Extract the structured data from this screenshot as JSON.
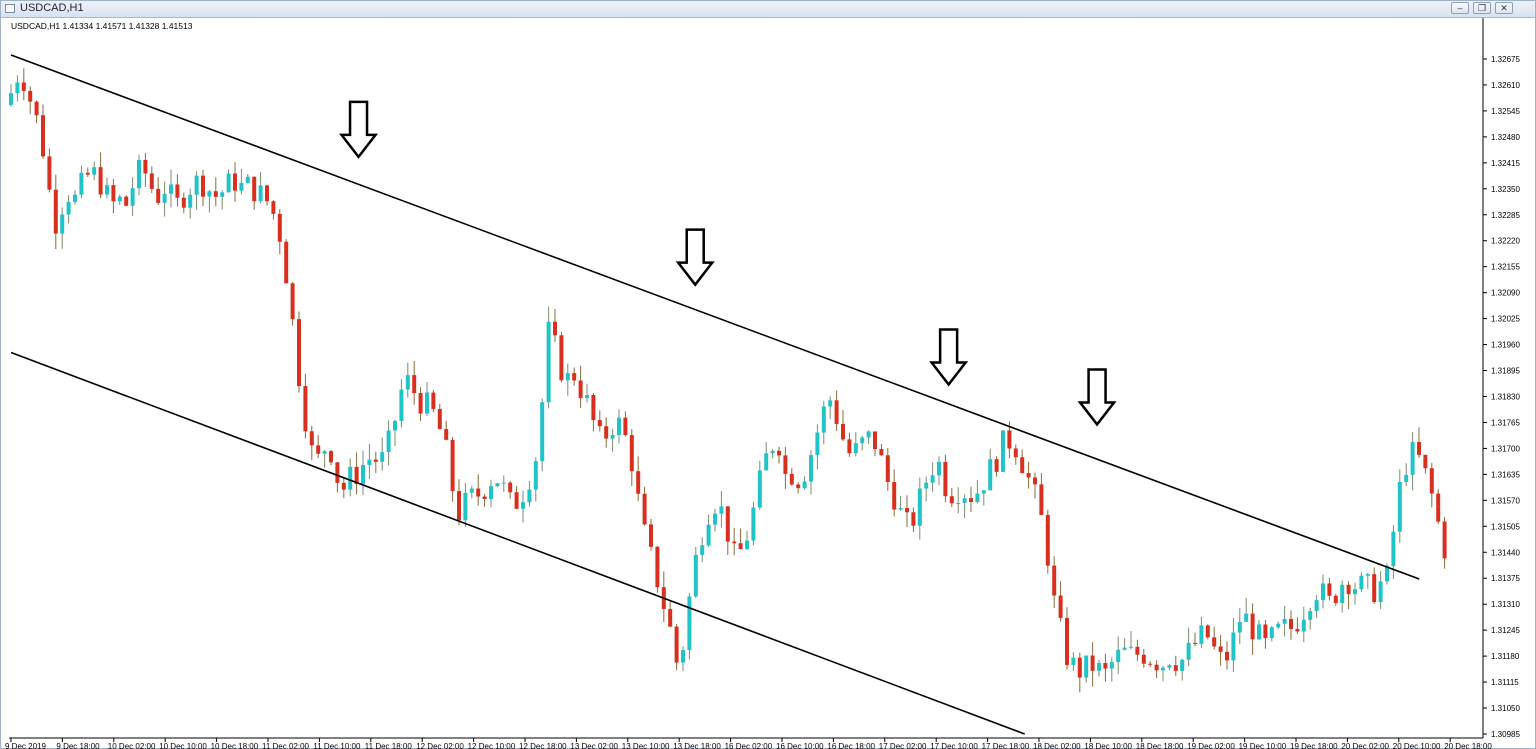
{
  "window": {
    "title": "USDCAD,H1",
    "controls": [
      "minimize",
      "restore",
      "close"
    ]
  },
  "chart_info": "USDCAD,H1  1.41334 1.41571 1.41328 1.41513",
  "chart_data": {
    "type": "candlestick",
    "symbol": "USDCAD",
    "timeframe": "H1",
    "header": {
      "open": 1.41334,
      "high": 1.41571,
      "low": 1.41328,
      "close": 1.41513
    },
    "colors": {
      "bull": "#22c3c8",
      "bear": "#d8301f",
      "line": "#000000"
    },
    "ylim": [
      1.3098,
      1.3271
    ],
    "y_ticks": [
      "1.32675",
      "1.32610",
      "1.32545",
      "1.32480",
      "1.32415",
      "1.32350",
      "1.32285",
      "1.32220",
      "1.32155",
      "1.32090",
      "1.32025",
      "1.31960",
      "1.31895",
      "1.31830",
      "1.31765",
      "1.31700",
      "1.31635",
      "1.31570",
      "1.31505",
      "1.31440",
      "1.31375",
      "1.31310",
      "1.31245",
      "1.31180",
      "1.31115",
      "1.31050",
      "1.30985"
    ],
    "x_ticks": [
      "9 Dec 2019",
      "9 Dec 18:00",
      "10 Dec 02:00",
      "10 Dec 10:00",
      "10 Dec 18:00",
      "11 Dec 02:00",
      "11 Dec 10:00",
      "11 Dec 18:00",
      "12 Dec 02:00",
      "12 Dec 10:00",
      "12 Dec 18:00",
      "13 Dec 02:00",
      "13 Dec 10:00",
      "13 Dec 18:00",
      "16 Dec 02:00",
      "16 Dec 10:00",
      "16 Dec 18:00",
      "17 Dec 02:00",
      "17 Dec 10:00",
      "17 Dec 18:00",
      "18 Dec 02:00",
      "18 Dec 10:00",
      "18 Dec 18:00",
      "19 Dec 02:00",
      "19 Dec 10:00",
      "19 Dec 18:00",
      "20 Dec 02:00",
      "20 Dec 10:00",
      "20 Dec 18:00"
    ],
    "candle_count": 225,
    "close_path": [
      [
        0,
        1.3259
      ],
      [
        2,
        1.3264
      ],
      [
        4,
        1.3262
      ],
      [
        6,
        1.3255
      ],
      [
        8,
        1.325
      ],
      [
        10,
        1.3238
      ],
      [
        12,
        1.3226
      ],
      [
        14,
        1.3231
      ],
      [
        16,
        1.3234
      ],
      [
        18,
        1.3232
      ],
      [
        20,
        1.3237
      ],
      [
        22,
        1.3239
      ],
      [
        24,
        1.3238
      ],
      [
        26,
        1.3234
      ],
      [
        28,
        1.3231
      ],
      [
        30,
        1.3232
      ],
      [
        32,
        1.3231
      ],
      [
        34,
        1.3237
      ],
      [
        36,
        1.324
      ],
      [
        38,
        1.3238
      ],
      [
        40,
        1.3232
      ],
      [
        42,
        1.3236
      ],
      [
        44,
        1.3233
      ],
      [
        46,
        1.3231
      ],
      [
        48,
        1.3234
      ],
      [
        50,
        1.3236
      ],
      [
        52,
        1.3237
      ],
      [
        54,
        1.3236
      ],
      [
        56,
        1.3233
      ],
      [
        58,
        1.3234
      ],
      [
        60,
        1.3236
      ],
      [
        62,
        1.3237
      ],
      [
        64,
        1.3235
      ],
      [
        66,
        1.3236
      ],
      [
        68,
        1.3234
      ],
      [
        70,
        1.3233
      ],
      [
        72,
        1.323
      ],
      [
        74,
        1.3225
      ],
      [
        76,
        1.3214
      ],
      [
        78,
        1.32
      ],
      [
        80,
        1.3185
      ],
      [
        82,
        1.3174
      ],
      [
        84,
        1.3165
      ],
      [
        86,
        1.317
      ],
      [
        88,
        1.3171
      ],
      [
        90,
        1.3163
      ],
      [
        92,
        1.316
      ],
      [
        94,
        1.3163
      ],
      [
        96,
        1.3164
      ],
      [
        98,
        1.3167
      ],
      [
        100,
        1.3168
      ],
      [
        102,
        1.3166
      ],
      [
        104,
        1.317
      ],
      [
        106,
        1.3177
      ],
      [
        108,
        1.3185
      ],
      [
        110,
        1.3187
      ],
      [
        112,
        1.3183
      ],
      [
        114,
        1.3181
      ],
      [
        116,
        1.318
      ],
      [
        118,
        1.3176
      ],
      [
        120,
        1.317
      ],
      [
        122,
        1.316
      ],
      [
        124,
        1.3153
      ],
      [
        126,
        1.3157
      ],
      [
        128,
        1.3158
      ],
      [
        130,
        1.3159
      ],
      [
        132,
        1.3162
      ],
      [
        134,
        1.3163
      ],
      [
        136,
        1.316
      ],
      [
        138,
        1.3156
      ],
      [
        140,
        1.3157
      ],
      [
        142,
        1.316
      ],
      [
        144,
        1.3165
      ],
      [
        146,
        1.3171
      ],
      [
        148,
        1.32
      ],
      [
        150,
        1.3196
      ],
      [
        152,
        1.319
      ],
      [
        154,
        1.3187
      ],
      [
        156,
        1.3189
      ],
      [
        158,
        1.3183
      ],
      [
        160,
        1.318
      ],
      [
        162,
        1.3172
      ],
      [
        164,
        1.3173
      ],
      [
        166,
        1.3176
      ],
      [
        168,
        1.3176
      ],
      [
        170,
        1.3172
      ],
      [
        172,
        1.3165
      ],
      [
        174,
        1.3152
      ],
      [
        176,
        1.3145
      ],
      [
        178,
        1.3139
      ],
      [
        180,
        1.3132
      ],
      [
        182,
        1.3125
      ],
      [
        184,
        1.3116
      ],
      [
        186,
        1.3122
      ],
      [
        188,
        1.3137
      ],
      [
        190,
        1.3146
      ],
      [
        192,
        1.3153
      ],
      [
        194,
        1.3157
      ],
      [
        196,
        1.3155
      ],
      [
        198,
        1.3149
      ],
      [
        200,
        1.3142
      ],
      [
        202,
        1.3145
      ],
      [
        204,
        1.315
      ],
      [
        206,
        1.3158
      ],
      [
        208,
        1.3166
      ],
      [
        210,
        1.3171
      ],
      [
        212,
        1.3172
      ],
      [
        214,
        1.3163
      ],
      [
        216,
        1.3164
      ],
      [
        218,
        1.3162
      ],
      [
        220,
        1.3166
      ],
      [
        222,
        1.3172
      ],
      [
        224,
        1.3178
      ],
      [
        226,
        1.3183
      ],
      [
        228,
        1.3178
      ],
      [
        230,
        1.3172
      ],
      [
        232,
        1.3168
      ],
      [
        234,
        1.317
      ],
      [
        236,
        1.3172
      ],
      [
        238,
        1.3173
      ],
      [
        240,
        1.3168
      ],
      [
        242,
        1.3162
      ],
      [
        244,
        1.3158
      ],
      [
        246,
        1.3153
      ],
      [
        248,
        1.315
      ],
      [
        250,
        1.3154
      ],
      [
        252,
        1.316
      ],
      [
        254,
        1.3165
      ],
      [
        256,
        1.3167
      ],
      [
        258,
        1.3161
      ],
      [
        260,
        1.3159
      ],
      [
        262,
        1.316
      ],
      [
        264,
        1.3159
      ],
      [
        266,
        1.3158
      ],
      [
        268,
        1.3161
      ],
      [
        270,
        1.3164
      ],
      [
        272,
        1.3167
      ],
      [
        274,
        1.3171
      ],
      [
        276,
        1.3172
      ],
      [
        278,
        1.317
      ],
      [
        280,
        1.3165
      ],
      [
        282,
        1.316
      ],
      [
        284,
        1.3155
      ],
      [
        286,
        1.3146
      ],
      [
        288,
        1.3132
      ],
      [
        290,
        1.3124
      ],
      [
        292,
        1.3117
      ],
      [
        294,
        1.3115
      ],
      [
        296,
        1.3114
      ],
      [
        298,
        1.3116
      ],
      [
        300,
        1.3115
      ],
      [
        302,
        1.3113
      ],
      [
        304,
        1.3116
      ],
      [
        306,
        1.3118
      ],
      [
        308,
        1.3119
      ],
      [
        310,
        1.3118
      ],
      [
        312,
        1.3119
      ],
      [
        314,
        1.3118
      ],
      [
        316,
        1.3117
      ],
      [
        318,
        1.3116
      ],
      [
        320,
        1.3118
      ],
      [
        322,
        1.3117
      ],
      [
        324,
        1.3117
      ],
      [
        326,
        1.312
      ],
      [
        328,
        1.3122
      ],
      [
        330,
        1.3124
      ],
      [
        332,
        1.312
      ],
      [
        334,
        1.3117
      ],
      [
        336,
        1.3118
      ],
      [
        338,
        1.3123
      ],
      [
        340,
        1.3129
      ],
      [
        342,
        1.3126
      ],
      [
        344,
        1.3124
      ],
      [
        346,
        1.312
      ],
      [
        348,
        1.3122
      ],
      [
        350,
        1.3124
      ],
      [
        352,
        1.3125
      ],
      [
        354,
        1.3125
      ],
      [
        356,
        1.3128
      ],
      [
        358,
        1.3131
      ],
      [
        360,
        1.3135
      ],
      [
        362,
        1.3134
      ],
      [
        364,
        1.3131
      ],
      [
        366,
        1.3134
      ],
      [
        368,
        1.3137
      ],
      [
        370,
        1.3137
      ],
      [
        372,
        1.3135
      ],
      [
        374,
        1.3136
      ],
      [
        376,
        1.3134
      ],
      [
        378,
        1.3136
      ],
      [
        380,
        1.3137
      ],
      [
        382,
        1.315
      ],
      [
        384,
        1.3162
      ],
      [
        386,
        1.3168
      ],
      [
        388,
        1.3169
      ],
      [
        390,
        1.3165
      ],
      [
        392,
        1.316
      ],
      [
        394,
        1.3152
      ],
      [
        396,
        1.3145
      ]
    ],
    "channel_lines": [
      {
        "name": "upper trendline",
        "x": [
          0,
          389
        ],
        "y": [
          1.32685,
          1.31373
        ]
      },
      {
        "name": "lower trendline",
        "x": [
          0,
          280
        ],
        "y": [
          1.3194,
          1.30985
        ]
      }
    ],
    "annotations": [
      {
        "type": "down-arrow",
        "x": 96,
        "y": 1.3243
      },
      {
        "type": "down-arrow",
        "x": 189,
        "y": 1.3211
      },
      {
        "type": "down-arrow",
        "x": 259,
        "y": 1.3186
      },
      {
        "type": "down-arrow",
        "x": 300,
        "y": 1.3176
      }
    ]
  }
}
